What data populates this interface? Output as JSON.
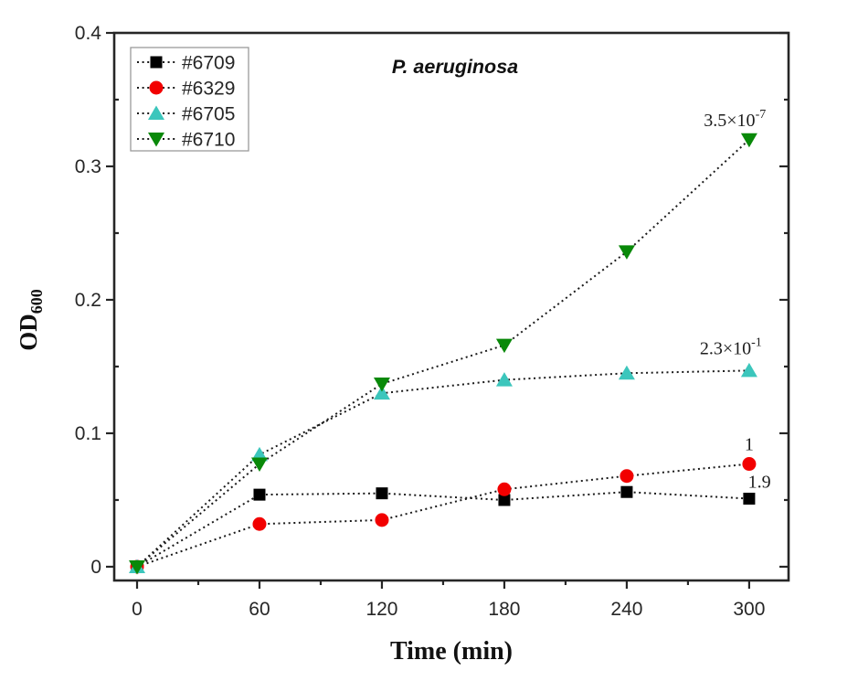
{
  "chart_data": {
    "type": "line",
    "title": "P. aeruginosa",
    "xlabel": "Time (min)",
    "ylabel_base": "OD",
    "ylabel_sub": "600",
    "x": [
      0,
      60,
      120,
      180,
      240,
      300
    ],
    "series": [
      {
        "name": "#6709",
        "marker": "square",
        "color": "#000000",
        "values": [
          0,
          0.054,
          0.055,
          0.05,
          0.056,
          0.051
        ]
      },
      {
        "name": "#6329",
        "marker": "circle",
        "color": "#f20000",
        "values": [
          0,
          0.032,
          0.035,
          0.058,
          0.068,
          0.077
        ]
      },
      {
        "name": "#6705",
        "marker": "triangle-up",
        "color": "#3cc6bc",
        "values": [
          0,
          0.084,
          0.13,
          0.14,
          0.145,
          0.147
        ]
      },
      {
        "name": "#6710",
        "marker": "triangle-down",
        "color": "#098909",
        "values": [
          0,
          0.077,
          0.137,
          0.166,
          0.236,
          0.32
        ]
      }
    ],
    "line_style": "dotted",
    "line_color": "#1a1a1a",
    "axis_color": "#262626",
    "text_color": "#262626",
    "xlim": [
      -11.2,
      319.3
    ],
    "ylim": [
      -0.0103,
      0.4
    ],
    "xticks": [
      0,
      60,
      120,
      180,
      240,
      300
    ],
    "xtick_labels": [
      "0",
      "60",
      "120",
      "180",
      "240",
      "300"
    ],
    "x_minor_ticks": [
      30,
      90,
      150,
      210,
      270
    ],
    "yticks": [
      0,
      0.1,
      0.2,
      0.3,
      0.4
    ],
    "ytick_labels": [
      "0",
      "0.1",
      "0.2",
      "0.3",
      "0.4"
    ],
    "y_minor_ticks": [
      0.05,
      0.15,
      0.25,
      0.35
    ],
    "grid": false,
    "legend_position": "top-left",
    "legend_entries": [
      "#6709",
      "#6329",
      "#6705",
      "#6710"
    ],
    "annotations": [
      {
        "base": "3.5×10",
        "sup": "-7",
        "x": 293,
        "y": 0.335
      },
      {
        "base": "2.3×10",
        "sup": "-1",
        "x": 291,
        "y": 0.164
      },
      {
        "base": "1",
        "sup": "",
        "x": 300,
        "y": 0.092
      },
      {
        "base": "1.9",
        "sup": "",
        "x": 305,
        "y": 0.064
      }
    ]
  }
}
